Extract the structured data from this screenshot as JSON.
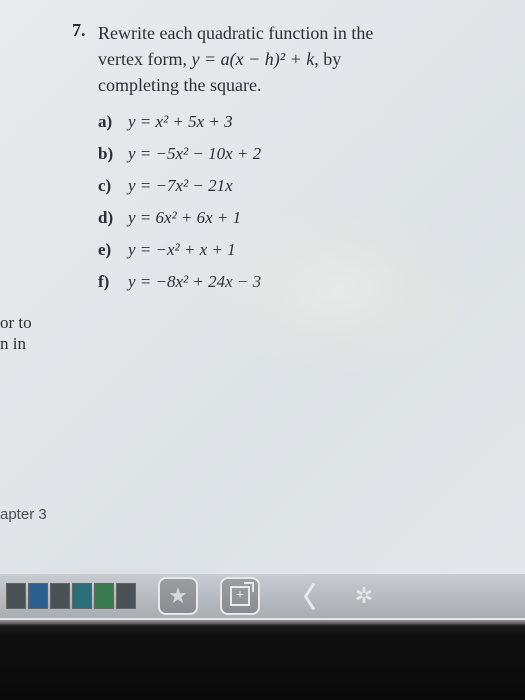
{
  "question": {
    "number": "7.",
    "stem_line1": "Rewrite each quadratic function in the",
    "stem_line2_pre": "vertex form, ",
    "stem_line2_formula": "y = a(x − h)² + k,",
    "stem_line2_post": " by",
    "stem_line3": "completing the square."
  },
  "items": [
    {
      "label": "a)",
      "eq": "y = x² + 5x + 3"
    },
    {
      "label": "b)",
      "eq": "y = −5x² − 10x + 2"
    },
    {
      "label": "c)",
      "eq": "y = −7x² − 21x"
    },
    {
      "label": "d)",
      "eq": "y = 6x² + 6x + 1"
    },
    {
      "label": "e)",
      "eq": "y = −x² + x + 1"
    },
    {
      "label": "f)",
      "eq": "y = −8x² + 24x − 3"
    }
  ],
  "left_fragments": {
    "f1": "or to",
    "f2": "n in",
    "f3": "apter 3"
  },
  "taskbar": {
    "star": "★",
    "plus": "+",
    "chevron": "〈",
    "brightness": "✲"
  },
  "colors": {
    "screen_bg": "#e5e8eb",
    "text": "#2a2f33",
    "bezel": "#0f0f0f",
    "taskbar_bg": "#b0b5ba"
  }
}
